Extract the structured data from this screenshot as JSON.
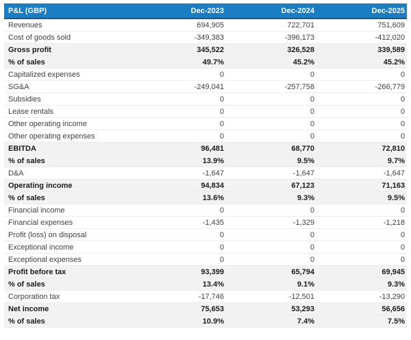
{
  "colors": {
    "header_bg": "#1b7ec2",
    "header_border": "#155a8f",
    "header_text": "#ffffff",
    "emphasis_row_bg": "#f2f2f2",
    "row_divider": "#ececec",
    "text_normal": "#3f3f3f",
    "text_emphasis": "#1a1a1a"
  },
  "chart_data": {
    "type": "table",
    "title": "P&L (GBP)",
    "columns": [
      "Dec-2023",
      "Dec-2024",
      "Dec-2025"
    ],
    "rows": [
      {
        "label": "Revenues",
        "values": [
          "694,905",
          "722,701",
          "751,609"
        ],
        "emphasis": false
      },
      {
        "label": "Cost of goods sold",
        "values": [
          "-349,383",
          "-396,173",
          "-412,020"
        ],
        "emphasis": false
      },
      {
        "label": "Gross profit",
        "values": [
          "345,522",
          "326,528",
          "339,589"
        ],
        "emphasis": true
      },
      {
        "label": "% of sales",
        "values": [
          "49.7%",
          "45.2%",
          "45.2%"
        ],
        "emphasis": true
      },
      {
        "label": "Capitalized expenses",
        "values": [
          "0",
          "0",
          "0"
        ],
        "emphasis": false
      },
      {
        "label": "SG&A",
        "values": [
          "-249,041",
          "-257,758",
          "-266,779"
        ],
        "emphasis": false
      },
      {
        "label": "Subsidies",
        "values": [
          "0",
          "0",
          "0"
        ],
        "emphasis": false
      },
      {
        "label": "Lease rentals",
        "values": [
          "0",
          "0",
          "0"
        ],
        "emphasis": false
      },
      {
        "label": "Other operating income",
        "values": [
          "0",
          "0",
          "0"
        ],
        "emphasis": false
      },
      {
        "label": "Other operating expenses",
        "values": [
          "0",
          "0",
          "0"
        ],
        "emphasis": false
      },
      {
        "label": "EBITDA",
        "values": [
          "96,481",
          "68,770",
          "72,810"
        ],
        "emphasis": true
      },
      {
        "label": "% of sales",
        "values": [
          "13.9%",
          "9.5%",
          "9.7%"
        ],
        "emphasis": true
      },
      {
        "label": "D&A",
        "values": [
          "-1,647",
          "-1,647",
          "-1,647"
        ],
        "emphasis": false
      },
      {
        "label": "Operating income",
        "values": [
          "94,834",
          "67,123",
          "71,163"
        ],
        "emphasis": true
      },
      {
        "label": "% of sales",
        "values": [
          "13.6%",
          "9.3%",
          "9.5%"
        ],
        "emphasis": true
      },
      {
        "label": "Financial income",
        "values": [
          "0",
          "0",
          "0"
        ],
        "emphasis": false
      },
      {
        "label": "Financial expenses",
        "values": [
          "-1,435",
          "-1,329",
          "-1,218"
        ],
        "emphasis": false
      },
      {
        "label": "Profit (loss) on disposal",
        "values": [
          "0",
          "0",
          "0"
        ],
        "emphasis": false
      },
      {
        "label": "Exceptional income",
        "values": [
          "0",
          "0",
          "0"
        ],
        "emphasis": false
      },
      {
        "label": "Exceptional expenses",
        "values": [
          "0",
          "0",
          "0"
        ],
        "emphasis": false
      },
      {
        "label": "Profit before tax",
        "values": [
          "93,399",
          "65,794",
          "69,945"
        ],
        "emphasis": true
      },
      {
        "label": "% of sales",
        "values": [
          "13.4%",
          "9.1%",
          "9.3%"
        ],
        "emphasis": true
      },
      {
        "label": "Corporation tax",
        "values": [
          "-17,746",
          "-12,501",
          "-13,290"
        ],
        "emphasis": false
      },
      {
        "label": "Net income",
        "values": [
          "75,653",
          "53,293",
          "56,656"
        ],
        "emphasis": true
      },
      {
        "label": "% of sales",
        "values": [
          "10.9%",
          "7.4%",
          "7.5%"
        ],
        "emphasis": true
      }
    ]
  }
}
